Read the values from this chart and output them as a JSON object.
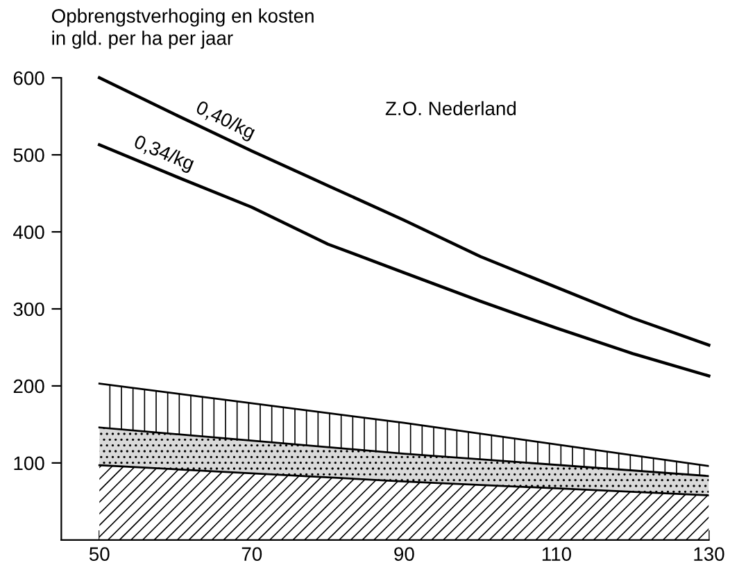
{
  "chart_data": {
    "type": "line",
    "ylabel": "Opbrengstverhoging en kosten\nin gld. per ha per jaar",
    "annotations": [
      "Z.O. Nederland"
    ],
    "xlim": [
      45,
      130
    ],
    "xticks": [
      50,
      70,
      90,
      110,
      130
    ],
    "ylim": [
      0,
      600
    ],
    "yticks": [
      100,
      200,
      300,
      400,
      500,
      600
    ],
    "grid": false,
    "legend": false,
    "stacked": true,
    "series": [
      {
        "name": "0,40/kg",
        "color": "#000000",
        "x": [
          50,
          60,
          70,
          80,
          90,
          100,
          110,
          120,
          130
        ],
        "values": [
          600,
          552,
          505,
          460,
          415,
          368,
          328,
          288,
          253
        ]
      },
      {
        "name": "0,34/kg",
        "color": "#000000",
        "x": [
          50,
          60,
          70,
          80,
          90,
          100,
          110,
          120,
          130
        ],
        "values": [
          513,
          472,
          432,
          384,
          347,
          310,
          275,
          242,
          213
        ]
      },
      {
        "type": "area",
        "color": "#ffffff",
        "x": [
          50,
          90,
          130
        ],
        "values": [
          97,
          76,
          58
        ]
      },
      {
        "type": "area",
        "color": "#d9d9d9",
        "x": [
          50,
          90,
          130
        ],
        "values": [
          49,
          36,
          25
        ]
      },
      {
        "type": "area",
        "color": "#ffffff",
        "x": [
          50,
          90,
          130
        ],
        "values": [
          57,
          40,
          13
        ]
      }
    ]
  }
}
